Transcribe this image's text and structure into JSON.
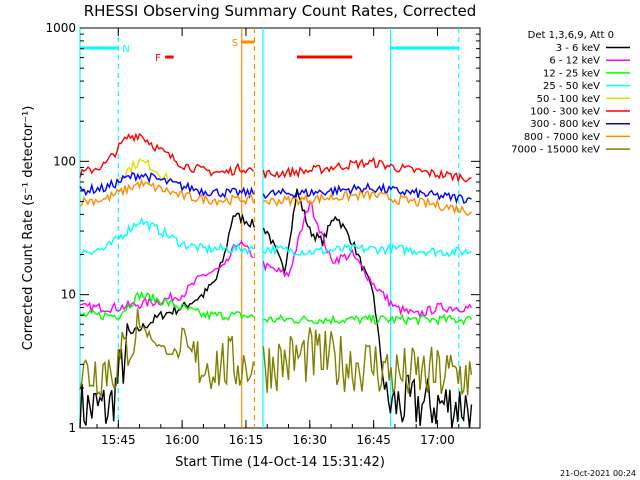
{
  "title": "RHESSI Observing Summary Count Rates, Corrected",
  "footer_date": "21-Oct-2021 00:24",
  "colors": {
    "band_3_6": "#000000",
    "band_6_12": "#ff00ff",
    "band_12_25": "#00ff00",
    "band_25_50": "#00ffff",
    "band_50_100": "#e0e000",
    "band_100_300": "#ff0000",
    "band_300_800": "#0000ff",
    "band_800_7000": "#ff8c00",
    "band_7000_15000": "#808000",
    "night_marker": "#00ffff",
    "saa_marker": "#ff8c00",
    "flare_marker": "#ff0000"
  },
  "chart_data": {
    "type": "line",
    "title": "RHESSI Observing Summary Count Rates, Corrected",
    "xlabel": "Start Time (14-Oct-14 15:31:42)",
    "ylabel": "Corrected Count Rate (s⁻¹ detector⁻¹)",
    "yscale": "log",
    "ylim": [
      1,
      1000
    ],
    "xlim": [
      "15:36",
      "17:10"
    ],
    "x_ticks": [
      "15:45",
      "16:00",
      "16:15",
      "16:30",
      "16:45",
      "17:00"
    ],
    "y_ticks": [
      "1",
      "10",
      "100",
      "1000"
    ],
    "legend_title": "Det 1,3,6,9, Att 0",
    "legend_position": "right",
    "flag_labels": {
      "night": "N",
      "flare": "F",
      "saa": "S"
    },
    "series": [
      {
        "name": "3 - 6 keV",
        "color_key": "band_3_6",
        "x": [
          "15:36",
          "15:43",
          "15:48",
          "15:55",
          "16:00",
          "16:05",
          "16:08",
          "16:10",
          "16:12",
          "16:20",
          "16:24",
          "16:27",
          "16:30",
          "16:33",
          "16:36",
          "16:40",
          "16:45",
          "16:48",
          "16:55",
          "17:02",
          "17:08"
        ],
        "y": [
          1.4,
          1.4,
          5,
          7,
          8,
          10,
          13,
          20,
          40,
          30,
          15,
          60,
          30,
          25,
          40,
          25,
          10,
          1.5,
          1.5,
          1.5,
          1.5
        ]
      },
      {
        "name": "6 - 12 keV",
        "color_key": "band_6_12",
        "x": [
          "15:36",
          "15:45",
          "15:55",
          "16:00",
          "16:05",
          "16:10",
          "16:13",
          "16:20",
          "16:25",
          "16:30",
          "16:35",
          "16:40",
          "16:45",
          "16:50",
          "16:55",
          "17:00",
          "17:08"
        ],
        "y": [
          8,
          8,
          9,
          10,
          14,
          16,
          25,
          16,
          14,
          50,
          18,
          20,
          12,
          8,
          7,
          8,
          8
        ]
      },
      {
        "name": "12 - 25 keV",
        "color_key": "band_12_25",
        "x": [
          "15:36",
          "15:45",
          "15:50",
          "15:55",
          "16:00",
          "16:05",
          "16:10",
          "16:14",
          "16:20",
          "16:30",
          "16:40",
          "16:48",
          "16:55",
          "17:02",
          "17:08"
        ],
        "y": [
          7,
          7,
          10,
          9,
          8,
          7,
          7,
          7,
          6.5,
          6.5,
          6.5,
          6.5,
          6.5,
          6.5,
          6.5
        ]
      },
      {
        "name": "25 - 50 keV",
        "color_key": "band_25_50",
        "x": [
          "15:36",
          "15:42",
          "15:47",
          "15:50",
          "15:55",
          "16:00",
          "16:05",
          "16:10",
          "16:14",
          "16:20",
          "16:30",
          "16:40",
          "16:50",
          "17:00",
          "17:08"
        ],
        "y": [
          21,
          22,
          30,
          36,
          30,
          24,
          22,
          22,
          22,
          22,
          21,
          22,
          22,
          21,
          21
        ]
      },
      {
        "name": "50 - 100 keV",
        "color_key": "band_50_100",
        "x": [
          "15:45",
          "15:48",
          "15:50",
          "15:52",
          "15:55",
          "15:58"
        ],
        "y": [
          75,
          90,
          100,
          95,
          80,
          70
        ]
      },
      {
        "name": "100 - 300 keV",
        "color_key": "band_100_300",
        "x": [
          "15:36",
          "15:42",
          "15:47",
          "15:50",
          "15:55",
          "16:00",
          "16:05",
          "16:10",
          "16:14",
          "16:20",
          "16:30",
          "16:40",
          "16:45",
          "16:50",
          "17:00",
          "17:08"
        ],
        "y": [
          80,
          95,
          150,
          160,
          120,
          95,
          85,
          82,
          90,
          80,
          85,
          95,
          98,
          90,
          80,
          75
        ]
      },
      {
        "name": "300 - 800 keV",
        "color_key": "band_300_800",
        "x": [
          "15:36",
          "15:42",
          "15:47",
          "15:50",
          "15:55",
          "16:00",
          "16:05",
          "16:10",
          "16:14",
          "16:20",
          "16:30",
          "16:40",
          "16:45",
          "16:50",
          "17:00",
          "17:08"
        ],
        "y": [
          60,
          63,
          75,
          80,
          72,
          65,
          60,
          58,
          58,
          57,
          58,
          62,
          63,
          60,
          55,
          52
        ]
      },
      {
        "name": "800 - 7000 keV",
        "color_key": "band_800_7000",
        "x": [
          "15:36",
          "15:42",
          "15:47",
          "15:50",
          "15:55",
          "16:00",
          "16:05",
          "16:10",
          "16:14",
          "16:20",
          "16:30",
          "16:40",
          "16:45",
          "16:50",
          "17:00",
          "17:08"
        ],
        "y": [
          50,
          52,
          62,
          68,
          62,
          55,
          52,
          51,
          52,
          50,
          52,
          55,
          56,
          52,
          47,
          42
        ]
      },
      {
        "name": "7000 - 15000 keV",
        "color_key": "band_7000_15000",
        "x": [
          "15:36",
          "15:45",
          "15:50",
          "15:55",
          "16:00",
          "16:05",
          "16:10",
          "16:14",
          "16:20",
          "16:30",
          "16:40",
          "16:45",
          "16:50",
          "17:00",
          "17:08"
        ],
        "y": [
          2.5,
          3,
          6,
          4,
          3.5,
          3,
          3,
          3,
          3,
          3.5,
          3,
          3,
          2.5,
          2.5,
          2.5
        ]
      }
    ],
    "flags": {
      "night": [
        [
          "15:36",
          "15:45"
        ],
        [
          "16:49",
          "17:05"
        ]
      ],
      "flare": [
        [
          "15:56",
          "15:58"
        ],
        [
          "16:27",
          "16:40"
        ]
      ],
      "saa": [
        [
          "16:14",
          "16:17"
        ]
      ]
    },
    "vlines": [
      {
        "time": "15:36",
        "style": "solid",
        "color_key": "night_marker"
      },
      {
        "time": "15:45",
        "style": "dashed",
        "color_key": "night_marker"
      },
      {
        "time": "16:14",
        "style": "solid",
        "color_key": "saa_marker"
      },
      {
        "time": "16:17",
        "style": "dashed",
        "color_key": "saa_marker"
      },
      {
        "time": "16:19",
        "style": "solid",
        "color_key": "night_marker"
      },
      {
        "time": "16:49",
        "style": "solid",
        "color_key": "night_marker"
      },
      {
        "time": "17:05",
        "style": "dashed",
        "color_key": "night_marker"
      }
    ],
    "data_gap": [
      "16:17",
      "16:19"
    ]
  }
}
